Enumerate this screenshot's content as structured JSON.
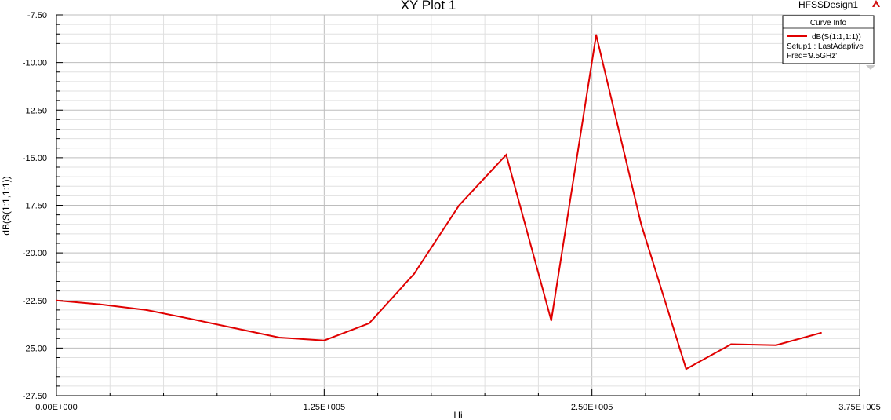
{
  "app": {
    "design_name": "HFSSDesign1",
    "ansys_logo_icon": "ansys-logo-icon"
  },
  "legend": {
    "header": "Curve Info",
    "lines": [
      "dB(S(1:1,1:1))",
      "Setup1 : LastAdaptive",
      "Freq='9.5GHz'"
    ],
    "placement": "top-right"
  },
  "chart_data": {
    "type": "line",
    "title": "XY Plot 1",
    "xlabel": "Hi",
    "ylabel": "dB(S(1:1,1:1))",
    "xlim": [
      0,
      375000
    ],
    "ylim": [
      -27.5,
      -7.5
    ],
    "grid": true,
    "x_ticks": [
      0,
      125000,
      250000,
      375000
    ],
    "x_tick_labels": [
      "0.00E+000",
      "1.25E+005",
      "2.50E+005",
      "3.75E+005"
    ],
    "y_ticks": [
      -7.5,
      -10,
      -12.5,
      -15,
      -17.5,
      -20,
      -22.5,
      -25,
      -27.5
    ],
    "y_tick_labels": [
      "-7.50",
      "-10.00",
      "-12.50",
      "-15.00",
      "-17.50",
      "-20.00",
      "-22.50",
      "-25.00",
      "-27.50"
    ],
    "series": [
      {
        "name": "dB(S(1:1,1:1))",
        "color": "#e00000",
        "x": [
          0,
          20000,
          42000,
          62000,
          83000,
          104000,
          125000,
          146000,
          167000,
          188000,
          210000,
          231000,
          252000,
          273000,
          294000,
          315000,
          336000,
          357000
        ],
        "y": [
          -22.5,
          -22.7,
          -23.0,
          -23.45,
          -23.95,
          -24.45,
          -24.6,
          -23.7,
          -21.1,
          -17.5,
          -14.85,
          -23.55,
          -8.55,
          -18.5,
          -26.1,
          -24.8,
          -24.85,
          -24.2
        ]
      }
    ]
  }
}
